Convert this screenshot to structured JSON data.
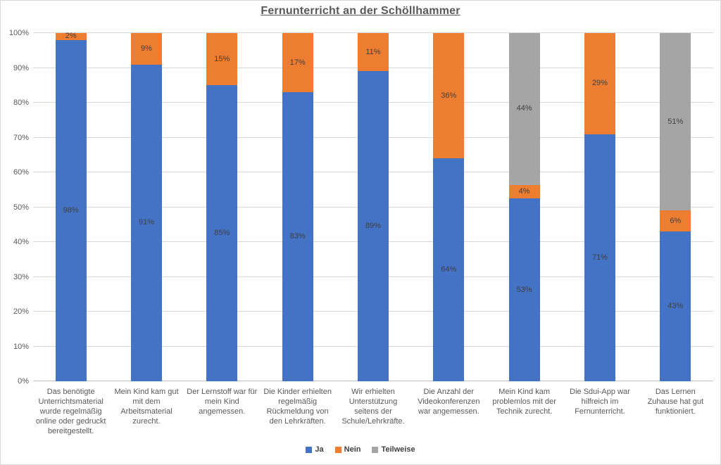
{
  "title": "Fernunterricht an der Schöllhammer",
  "colors": {
    "ja": "#4472C4",
    "nein": "#ED7D31",
    "teilweise": "#A5A5A5",
    "gridline": "#D9D9D9",
    "axis_text": "#595959",
    "data_label_text": "#404040"
  },
  "chart_data": {
    "type": "bar",
    "stacked": true,
    "title": "Fernunterricht an der Schöllhammer",
    "categories": [
      "Das benötigte Unterrichtsmaterial wurde regelmäßig online oder gedruckt bereitgestellt.",
      "Mein Kind kam gut mit dem Arbeitsmaterial zurecht.",
      "Der Lernstoff war für mein Kind angemessen.",
      "Die Kinder erhielten regelmäßig Rückmeldung von den Lehrkräften.",
      "Wir erhielten Unterstützung seitens der Schule/Lehrkräfte.",
      "Die Anzahl der Videokonferenzen war angemessen.",
      "Mein Kind kam problemlos mit der Technik zurecht.",
      "Die Sdui-App war hilfreich im Fernunterricht.",
      "Das Lernen Zuhause hat gut funktioniert."
    ],
    "series": [
      {
        "name": "Ja",
        "color": "#4472C4",
        "values": [
          98,
          91,
          85,
          83,
          89,
          64,
          53,
          71,
          43
        ]
      },
      {
        "name": "Nein",
        "color": "#ED7D31",
        "values": [
          2,
          9,
          15,
          17,
          11,
          36,
          4,
          29,
          6
        ]
      },
      {
        "name": "Teilweise",
        "color": "#A5A5A5",
        "values": [
          0,
          0,
          0,
          0,
          0,
          0,
          44,
          0,
          51
        ]
      }
    ],
    "data_labels": [
      [
        "98%",
        "91%",
        "85%",
        "83%",
        "89%",
        "64%",
        "53%",
        "71%",
        "43%"
      ],
      [
        "2%",
        "9%",
        "15%",
        "17%",
        "11%",
        "36%",
        "4%",
        "29%",
        "6%"
      ],
      [
        "",
        "",
        "",
        "",
        "",
        "",
        "44%",
        "",
        "51%"
      ]
    ],
    "xlabel": "",
    "ylabel": "",
    "ylim": [
      0,
      100
    ],
    "y_ticks": [
      "0%",
      "10%",
      "20%",
      "30%",
      "40%",
      "50%",
      "60%",
      "70%",
      "80%",
      "90%",
      "100%"
    ],
    "grid": true,
    "legend_position": "bottom",
    "legend": [
      "Ja",
      "Nein",
      "Teilweise"
    ]
  }
}
